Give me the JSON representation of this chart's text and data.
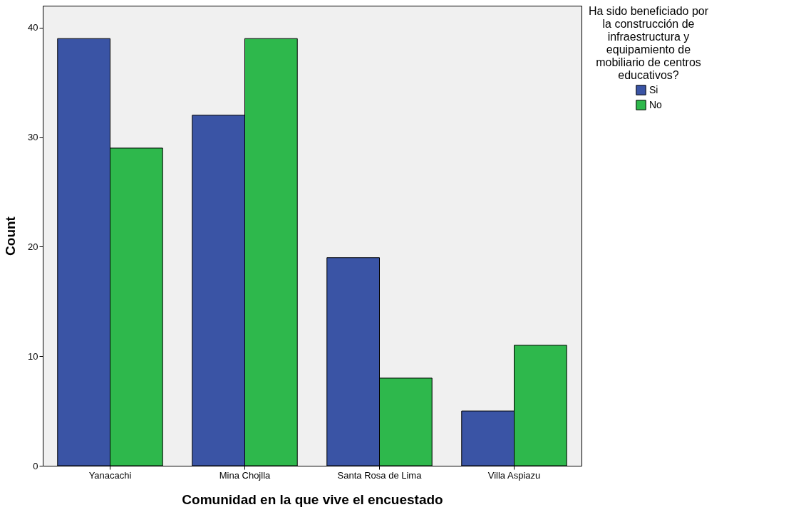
{
  "chart_data": {
    "type": "bar",
    "xlabel": "Comunidad en la que vive el encuestado",
    "ylabel": "Count",
    "legend_title": "Ha sido beneficiado por la construcción de infraestructura y equipamiento de mobiliario de centros educativos?",
    "categories": [
      "Yanacachi",
      "Mina Chojlla",
      "Santa Rosa de Lima",
      "Villa Aspiazu"
    ],
    "series": [
      {
        "name": "Si",
        "color": "#3a54a5",
        "values": [
          39,
          32,
          19,
          5
        ]
      },
      {
        "name": "No",
        "color": "#2eb84c",
        "values": [
          29,
          39,
          8,
          11
        ]
      }
    ],
    "ylim": [
      0,
      42
    ],
    "yticks": [
      0,
      10,
      20,
      30,
      40
    ],
    "grid": false,
    "legend": "top right"
  }
}
